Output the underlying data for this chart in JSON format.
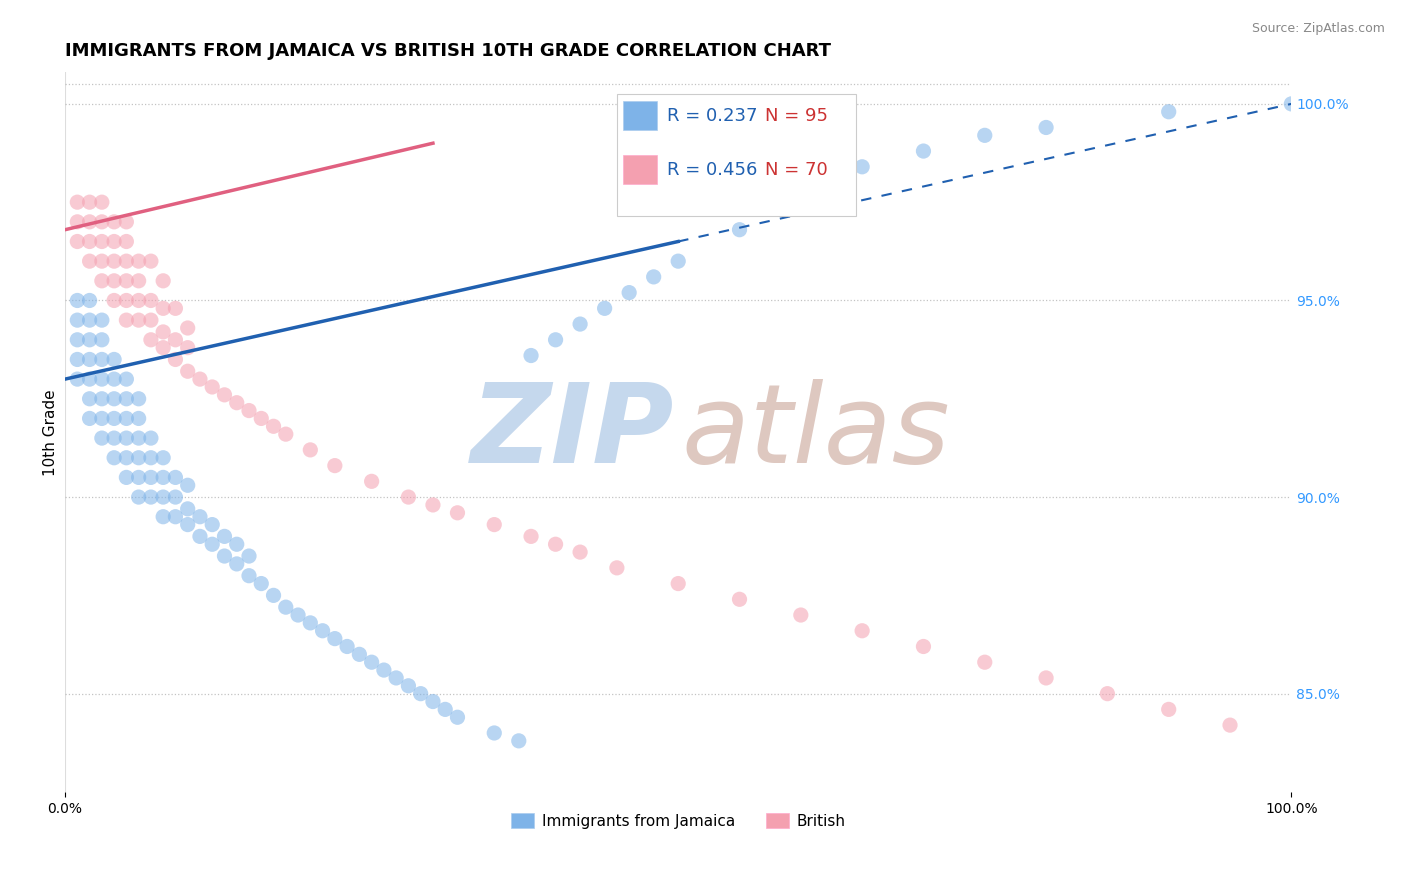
{
  "title": "IMMIGRANTS FROM JAMAICA VS BRITISH 10TH GRADE CORRELATION CHART",
  "source_text": "Source: ZipAtlas.com",
  "ylabel": "10th Grade",
  "x_min": 0.0,
  "x_max": 1.0,
  "y_min": 0.825,
  "y_max": 1.008,
  "right_yticks": [
    0.85,
    0.9,
    0.95,
    1.0
  ],
  "right_yticklabels": [
    "85.0%",
    "90.0%",
    "95.0%",
    "100.0%"
  ],
  "xticklabels": [
    "0.0%",
    "100.0%"
  ],
  "blue_color": "#7EB3E8",
  "pink_color": "#F4A0B0",
  "blue_line_color": "#2060B0",
  "pink_line_color": "#E06080",
  "blue_R": 0.237,
  "blue_N": 95,
  "pink_R": 0.456,
  "pink_N": 70,
  "legend_label_blue": "Immigrants from Jamaica",
  "legend_label_pink": "British",
  "title_fontsize": 13,
  "axis_label_fontsize": 11,
  "tick_fontsize": 10,
  "blue_scatter_x": [
    0.01,
    0.01,
    0.01,
    0.01,
    0.01,
    0.02,
    0.02,
    0.02,
    0.02,
    0.02,
    0.02,
    0.02,
    0.03,
    0.03,
    0.03,
    0.03,
    0.03,
    0.03,
    0.03,
    0.04,
    0.04,
    0.04,
    0.04,
    0.04,
    0.04,
    0.05,
    0.05,
    0.05,
    0.05,
    0.05,
    0.05,
    0.06,
    0.06,
    0.06,
    0.06,
    0.06,
    0.06,
    0.07,
    0.07,
    0.07,
    0.07,
    0.08,
    0.08,
    0.08,
    0.08,
    0.09,
    0.09,
    0.09,
    0.1,
    0.1,
    0.1,
    0.11,
    0.11,
    0.12,
    0.12,
    0.13,
    0.13,
    0.14,
    0.14,
    0.15,
    0.15,
    0.16,
    0.17,
    0.18,
    0.19,
    0.2,
    0.21,
    0.22,
    0.23,
    0.24,
    0.25,
    0.26,
    0.27,
    0.28,
    0.29,
    0.3,
    0.31,
    0.32,
    0.35,
    0.37,
    0.38,
    0.4,
    0.42,
    0.44,
    0.46,
    0.48,
    0.5,
    0.55,
    0.6,
    0.65,
    0.7,
    0.75,
    0.8,
    0.9,
    1.0
  ],
  "blue_scatter_y": [
    0.93,
    0.935,
    0.94,
    0.945,
    0.95,
    0.92,
    0.925,
    0.93,
    0.935,
    0.94,
    0.945,
    0.95,
    0.915,
    0.92,
    0.925,
    0.93,
    0.935,
    0.94,
    0.945,
    0.91,
    0.915,
    0.92,
    0.925,
    0.93,
    0.935,
    0.905,
    0.91,
    0.915,
    0.92,
    0.925,
    0.93,
    0.9,
    0.905,
    0.91,
    0.915,
    0.92,
    0.925,
    0.9,
    0.905,
    0.91,
    0.915,
    0.895,
    0.9,
    0.905,
    0.91,
    0.895,
    0.9,
    0.905,
    0.893,
    0.897,
    0.903,
    0.89,
    0.895,
    0.888,
    0.893,
    0.885,
    0.89,
    0.883,
    0.888,
    0.88,
    0.885,
    0.878,
    0.875,
    0.872,
    0.87,
    0.868,
    0.866,
    0.864,
    0.862,
    0.86,
    0.858,
    0.856,
    0.854,
    0.852,
    0.85,
    0.848,
    0.846,
    0.844,
    0.84,
    0.838,
    0.936,
    0.94,
    0.944,
    0.948,
    0.952,
    0.956,
    0.96,
    0.968,
    0.976,
    0.984,
    0.988,
    0.992,
    0.994,
    0.998,
    1.0
  ],
  "pink_scatter_x": [
    0.01,
    0.01,
    0.01,
    0.02,
    0.02,
    0.02,
    0.02,
    0.03,
    0.03,
    0.03,
    0.03,
    0.03,
    0.04,
    0.04,
    0.04,
    0.04,
    0.04,
    0.05,
    0.05,
    0.05,
    0.05,
    0.05,
    0.05,
    0.06,
    0.06,
    0.06,
    0.06,
    0.07,
    0.07,
    0.07,
    0.07,
    0.08,
    0.08,
    0.08,
    0.08,
    0.09,
    0.09,
    0.09,
    0.1,
    0.1,
    0.1,
    0.11,
    0.12,
    0.13,
    0.14,
    0.15,
    0.16,
    0.17,
    0.18,
    0.2,
    0.22,
    0.25,
    0.28,
    0.3,
    0.32,
    0.35,
    0.38,
    0.4,
    0.42,
    0.45,
    0.5,
    0.55,
    0.6,
    0.65,
    0.7,
    0.75,
    0.8,
    0.85,
    0.9,
    0.95
  ],
  "pink_scatter_y": [
    0.965,
    0.97,
    0.975,
    0.96,
    0.965,
    0.97,
    0.975,
    0.955,
    0.96,
    0.965,
    0.97,
    0.975,
    0.95,
    0.955,
    0.96,
    0.965,
    0.97,
    0.945,
    0.95,
    0.955,
    0.96,
    0.965,
    0.97,
    0.945,
    0.95,
    0.955,
    0.96,
    0.94,
    0.945,
    0.95,
    0.96,
    0.938,
    0.942,
    0.948,
    0.955,
    0.935,
    0.94,
    0.948,
    0.932,
    0.938,
    0.943,
    0.93,
    0.928,
    0.926,
    0.924,
    0.922,
    0.92,
    0.918,
    0.916,
    0.912,
    0.908,
    0.904,
    0.9,
    0.898,
    0.896,
    0.893,
    0.89,
    0.888,
    0.886,
    0.882,
    0.878,
    0.874,
    0.87,
    0.866,
    0.862,
    0.858,
    0.854,
    0.85,
    0.846,
    0.842
  ]
}
